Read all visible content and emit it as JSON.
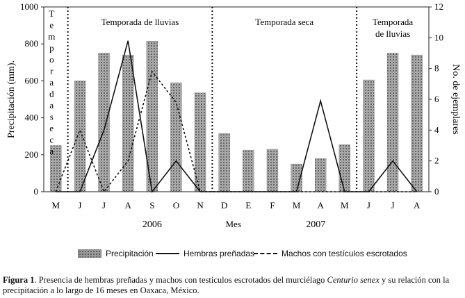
{
  "chart_data": {
    "type": "bar+line",
    "categories": [
      "M",
      "J",
      "J",
      "A",
      "S",
      "O",
      "N",
      "D",
      "E",
      "F",
      "M",
      "A",
      "M",
      "J",
      "J",
      "A"
    ],
    "series": [
      {
        "name": "Precipitación",
        "kind": "bar",
        "axis": "left",
        "values": [
          250,
          600,
          750,
          740,
          815,
          590,
          535,
          315,
          225,
          230,
          150,
          180,
          255,
          605,
          750,
          740
        ]
      },
      {
        "name": "Hembras preñadas",
        "kind": "line",
        "style": "solid",
        "axis": "right",
        "values": [
          0,
          0,
          4,
          9.8,
          0,
          2,
          0,
          0,
          0,
          0,
          0,
          5.9,
          0,
          0,
          2,
          0
        ]
      },
      {
        "name": "Machos con testículos escrotados",
        "kind": "line",
        "style": "dashed",
        "axis": "right",
        "values": [
          0,
          4,
          0,
          2,
          7.8,
          5.8,
          0,
          0,
          0,
          0,
          0,
          0,
          0,
          0,
          0,
          0
        ]
      }
    ],
    "ylabel_left": "Precipitación (mm).",
    "ylabel_right": "No. de ejemplares",
    "xlabel": "Mes",
    "ylim_left": [
      0,
      1000
    ],
    "ylim_right": [
      0,
      12
    ],
    "yticks_left": [
      "0",
      "200",
      "400",
      "600",
      "800",
      "1000"
    ],
    "yticks_right": [
      "0",
      "2",
      "4",
      "6",
      "8",
      "10",
      "12"
    ],
    "years": [
      "2006",
      "2007"
    ],
    "season_dividers_after_index": [
      0,
      6,
      12
    ],
    "season_labels": [
      {
        "text": "Temporada de lluvias",
        "start": 1,
        "end": 6
      },
      {
        "text": "Temporada seca",
        "start": 7,
        "end": 12
      },
      {
        "text": "Temporada\nde lluvias",
        "start": 13,
        "end": 15
      }
    ],
    "vertical_season_label": "Temporada seca",
    "legend": [
      "Precipitación",
      "Hembras preñadas",
      "Machos con testículos escrotados"
    ]
  },
  "legend": {
    "precip": "Precipitación",
    "females": "Hembras preñadas",
    "males": "Machos con testículos escrotados"
  },
  "caption": {
    "label": "Figura 1",
    "text_before": ". Presencia de hembras preñadas y machos con testículos escrotados del murciélago ",
    "species": "Centurio senex",
    "text_after": " y su relación con la precipitación a lo largo de 16 meses en Oaxaca, México."
  }
}
